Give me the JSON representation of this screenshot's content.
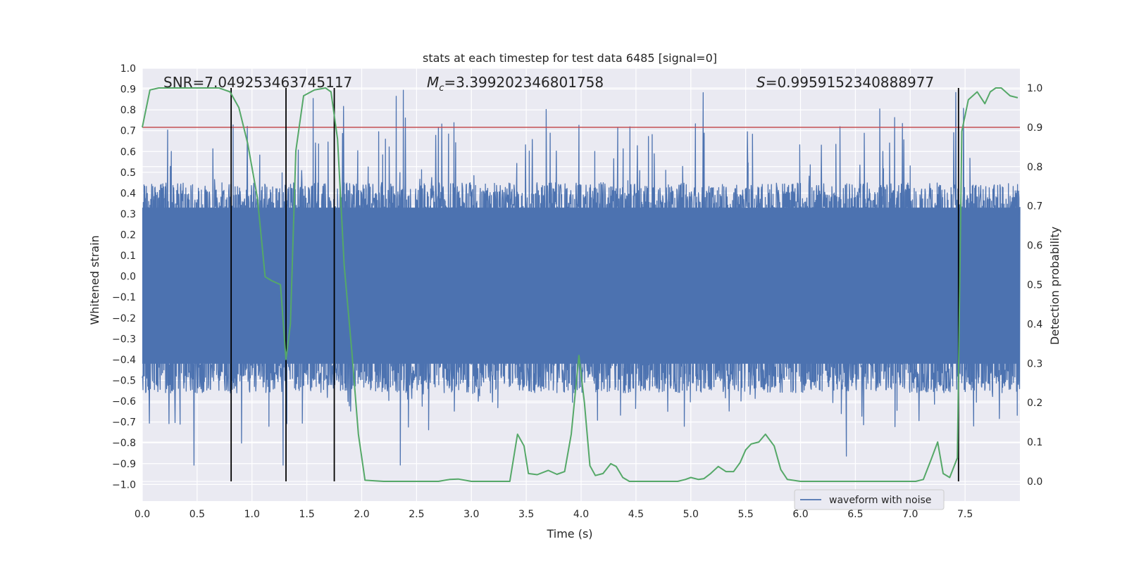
{
  "chart_data": {
    "type": "line",
    "title": "stats at each timestep for test data 6485 [signal=0]",
    "xlabel": "Time (s)",
    "ylabel": "Whitened strain",
    "y2label": "Detection probability",
    "xlim": [
      0.0,
      8.0
    ],
    "ylim": [
      -1.08,
      1.0
    ],
    "y2lim": [
      -0.05,
      1.05
    ],
    "xticks": [
      "0.0",
      "0.5",
      "1.0",
      "1.5",
      "2.0",
      "2.5",
      "3.0",
      "3.5",
      "4.0",
      "4.5",
      "5.0",
      "5.5",
      "6.0",
      "6.5",
      "7.0",
      "7.5"
    ],
    "yticks": [
      "1.0",
      "0.9",
      "0.8",
      "0.7",
      "0.6",
      "0.5",
      "0.4",
      "0.3",
      "0.2",
      "0.1",
      "0.0",
      "−0.1",
      "−0.2",
      "−0.3",
      "−0.4",
      "−0.5",
      "−0.6",
      "−0.7",
      "−0.8",
      "−0.9",
      "−1.0"
    ],
    "y2ticks": [
      "1.0",
      "0.9",
      "0.8",
      "0.7",
      "0.6",
      "0.5",
      "0.4",
      "0.3",
      "0.2",
      "0.1",
      "0.0"
    ],
    "annotations": {
      "snr": "SNR=7.049253463745117",
      "mc_symbol": "M",
      "mc_sub": "c",
      "mc_value": "=3.399202346801758",
      "s_symbol": "S",
      "s_value": "=0.9959152340888977"
    },
    "legend": {
      "label": "waveform with noise",
      "placement": "lower-right"
    },
    "colors": {
      "waveform": "#4c72b0",
      "probability": "#55a868",
      "threshold": "#c44e52",
      "vlines": "#000000",
      "background": "#eaeaf2",
      "grid": "#ffffff"
    },
    "threshold_probability": 0.9,
    "vlines_x": [
      0.81,
      1.31,
      1.75,
      7.44
    ],
    "waveform": {
      "name": "waveform with noise",
      "band_top": 0.33,
      "band_bottom": -0.42,
      "max_spike": 0.91,
      "min_spike": -1.0
    },
    "probability": {
      "name": "detection probability",
      "x": [
        0.0,
        0.07,
        0.15,
        0.3,
        0.5,
        0.7,
        0.8,
        0.88,
        0.96,
        1.05,
        1.12,
        1.18,
        1.26,
        1.31,
        1.35,
        1.4,
        1.47,
        1.57,
        1.67,
        1.72,
        1.78,
        1.84,
        1.91,
        1.97,
        2.03,
        2.2,
        2.5,
        2.7,
        2.8,
        2.88,
        3.0,
        3.2,
        3.35,
        3.42,
        3.48,
        3.52,
        3.6,
        3.7,
        3.78,
        3.85,
        3.91,
        3.98,
        4.03,
        4.08,
        4.13,
        4.2,
        4.27,
        4.32,
        4.38,
        4.44,
        4.5,
        4.7,
        4.82,
        4.88,
        4.95,
        5.0,
        5.07,
        5.12,
        5.18,
        5.25,
        5.32,
        5.39,
        5.45,
        5.5,
        5.55,
        5.62,
        5.68,
        5.76,
        5.82,
        5.88,
        6.0,
        6.2,
        6.5,
        6.7,
        6.9,
        7.05,
        7.12,
        7.19,
        7.25,
        7.3,
        7.36,
        7.43,
        7.47,
        7.53,
        7.61,
        7.68,
        7.73,
        7.78,
        7.83,
        7.91,
        7.98
      ],
      "y": [
        0.9,
        0.995,
        1.0,
        1.0,
        1.0,
        1.0,
        0.99,
        0.95,
        0.86,
        0.72,
        0.52,
        0.51,
        0.5,
        0.31,
        0.4,
        0.84,
        0.98,
        0.995,
        1.0,
        0.99,
        0.87,
        0.55,
        0.33,
        0.12,
        0.003,
        0.0,
        0.0,
        0.0,
        0.005,
        0.006,
        0.0,
        0.0,
        0.0,
        0.12,
        0.09,
        0.02,
        0.017,
        0.028,
        0.018,
        0.025,
        0.12,
        0.32,
        0.2,
        0.04,
        0.015,
        0.02,
        0.045,
        0.038,
        0.01,
        0.0,
        0.0,
        0.0,
        0.0,
        0.0,
        0.005,
        0.01,
        0.005,
        0.007,
        0.02,
        0.038,
        0.025,
        0.025,
        0.048,
        0.08,
        0.095,
        0.1,
        0.12,
        0.09,
        0.03,
        0.005,
        0.0,
        0.0,
        0.0,
        0.0,
        0.0,
        0.0,
        0.005,
        0.055,
        0.1,
        0.02,
        0.01,
        0.06,
        0.89,
        0.97,
        0.99,
        0.96,
        0.99,
        1.0,
        1.0,
        0.98,
        0.975
      ]
    }
  }
}
